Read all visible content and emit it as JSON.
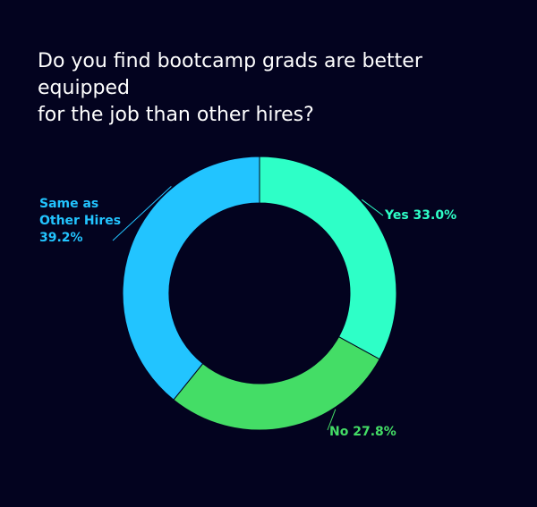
{
  "title_lines": [
    "Do you find bootcamp grads are better equipped",
    "for the job than other hires?"
  ],
  "chart_data": {
    "type": "pie",
    "donut": true,
    "title": "Do you find bootcamp grads are better equipped for the job than other hires?",
    "slices": [
      {
        "name": "Yes",
        "value": 33.0,
        "label": "Yes 33.0%",
        "label_lines": [
          "Yes 33.0%"
        ],
        "color": "#2effc7"
      },
      {
        "name": "No",
        "value": 27.8,
        "label": "No 27.8%",
        "label_lines": [
          "No 27.8%"
        ],
        "color": "#44dd66"
      },
      {
        "name": "Same as Other Hires",
        "value": 39.2,
        "label": "Same as Other Hires 39.2%",
        "label_lines": [
          "Same as",
          "Other Hires",
          "39.2%"
        ],
        "color": "#22c4ff"
      }
    ]
  }
}
